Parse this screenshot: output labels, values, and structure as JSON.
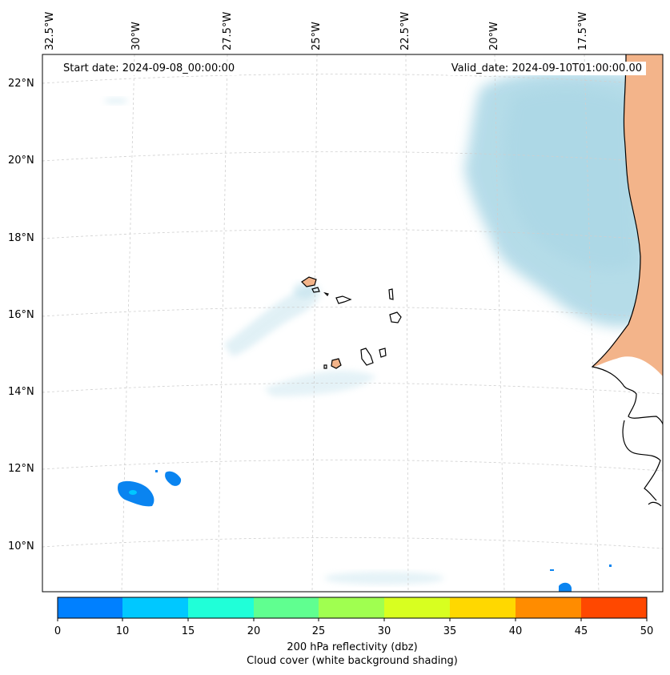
{
  "map": {
    "start_date": "Start date: 2024-09-08_00:00:00",
    "valid_date": "Valid_date: 2024-09-10T01:00:00.00",
    "lon_labels": [
      "32.5°W",
      "30°W",
      "27.5°W",
      "25°W",
      "22.5°W",
      "20°W",
      "17.5°W"
    ],
    "lat_labels": [
      "22°N",
      "20°N",
      "18°N",
      "16°N",
      "14°N",
      "12°N",
      "10°N"
    ]
  },
  "colorbar": {
    "ticks": [
      "0",
      "10",
      "15",
      "20",
      "25",
      "30",
      "35",
      "40",
      "45",
      "50"
    ],
    "colors": [
      "#0080ff",
      "#00c8ff",
      "#20ffd8",
      "#60ff90",
      "#a0ff50",
      "#d8ff20",
      "#ffd800",
      "#ff8c00",
      "#ff4800"
    ],
    "label_line1": "200 hPa reflectivity (dbz)",
    "label_line2": "Cloud cover (white background shading)"
  },
  "colors": {
    "cloud": "#a9d6e5",
    "land": "#f3b48a",
    "echo": "#0a84f0"
  }
}
